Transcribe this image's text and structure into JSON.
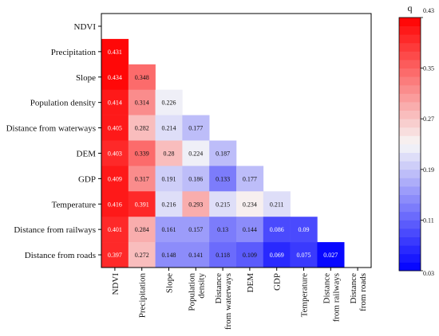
{
  "chart_data": {
    "type": "heatmap",
    "title": "",
    "row_labels": [
      "NDVI",
      "Precipitation",
      "Slope",
      "Population density",
      "Distance from waterways",
      "DEM",
      "GDP",
      "Temperature",
      "Distance from railways",
      "Distance from roads"
    ],
    "col_labels": [
      [
        "NDVI"
      ],
      [
        "Precipitation"
      ],
      [
        "Slope"
      ],
      [
        "Population",
        "density"
      ],
      [
        "Distance",
        "from waterways"
      ],
      [
        "DEM"
      ],
      [
        "GDP"
      ],
      [
        "Temperature"
      ],
      [
        "Distance",
        "from railways"
      ],
      [
        "Distance",
        "from roads"
      ]
    ],
    "values": [
      [],
      [
        0.431
      ],
      [
        0.434,
        0.348
      ],
      [
        0.414,
        0.314,
        0.226
      ],
      [
        0.405,
        0.282,
        0.214,
        0.177
      ],
      [
        0.403,
        0.339,
        0.28,
        0.224,
        0.187
      ],
      [
        0.409,
        0.317,
        0.191,
        0.186,
        0.133,
        0.177
      ],
      [
        0.416,
        0.391,
        0.216,
        0.293,
        0.215,
        0.234,
        0.211
      ],
      [
        0.401,
        0.284,
        0.161,
        0.157,
        0.13,
        0.144,
        0.086,
        0.09
      ],
      [
        0.397,
        0.272,
        0.148,
        0.141,
        0.118,
        0.109,
        0.069,
        0.075,
        0.027
      ]
    ],
    "value_labels": [
      [],
      [
        "0.431"
      ],
      [
        "0.434",
        "0.348"
      ],
      [
        "0.414",
        "0.314",
        "0.226"
      ],
      [
        "0.405",
        "0.282",
        "0.214",
        "0.177"
      ],
      [
        "0.403",
        "0.339",
        "0.28",
        "0.224",
        "0.187"
      ],
      [
        "0.409",
        "0.317",
        "0.191",
        "0.186",
        "0.133",
        "0.177"
      ],
      [
        "0.416",
        "0.391",
        "0.216",
        "0.293",
        "0.215",
        "0.234",
        "0.211"
      ],
      [
        "0.401",
        "0.284",
        "0.161",
        "0.157",
        "0.13",
        "0.144",
        "0.086",
        "0.09"
      ],
      [
        "0.397",
        "0.272",
        "0.148",
        "0.141",
        "0.118",
        "0.109",
        "0.069",
        "0.075",
        "0.027"
      ]
    ],
    "colorbar": {
      "title": "q",
      "min": 0.03,
      "max": 0.43,
      "ticks": [
        "0.43",
        "0.35",
        "0.27",
        "0.19",
        "0.11",
        "0.03"
      ],
      "levels": 30,
      "low_color": "#0000ff",
      "mid_color": "#f7f7f7",
      "high_color": "#ff0000"
    }
  }
}
